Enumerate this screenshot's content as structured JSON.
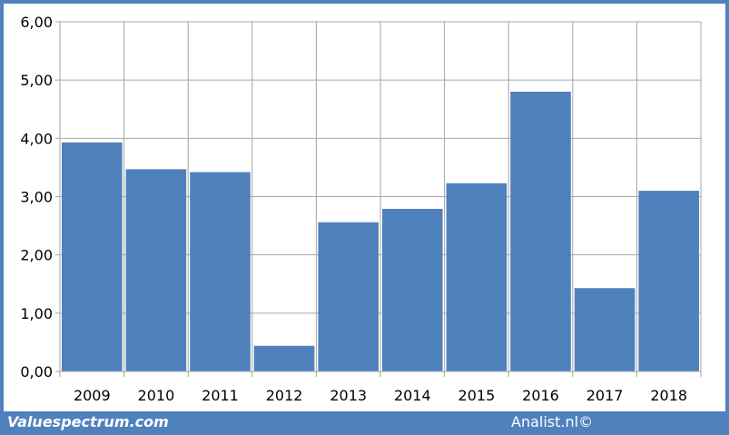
{
  "chart_data": {
    "type": "bar",
    "categories": [
      "2009",
      "2010",
      "2011",
      "2012",
      "2013",
      "2014",
      "2015",
      "2016",
      "2017",
      "2018"
    ],
    "values": [
      3.93,
      3.47,
      3.42,
      0.44,
      2.56,
      2.79,
      3.23,
      4.8,
      1.43,
      3.1
    ],
    "y_ticks": [
      "0,00",
      "1,00",
      "2,00",
      "3,00",
      "4,00",
      "5,00",
      "6,00"
    ],
    "ylim": [
      0,
      6
    ],
    "grid": true,
    "bar_color": "#4f81bd",
    "title": "",
    "xlabel": "",
    "ylabel": ""
  },
  "footer": {
    "source_left": "Valuespectrum.com",
    "source_right": "Analist.nl©"
  },
  "colors": {
    "frame": "#4f81bd",
    "grid": "#a6a6a6"
  }
}
